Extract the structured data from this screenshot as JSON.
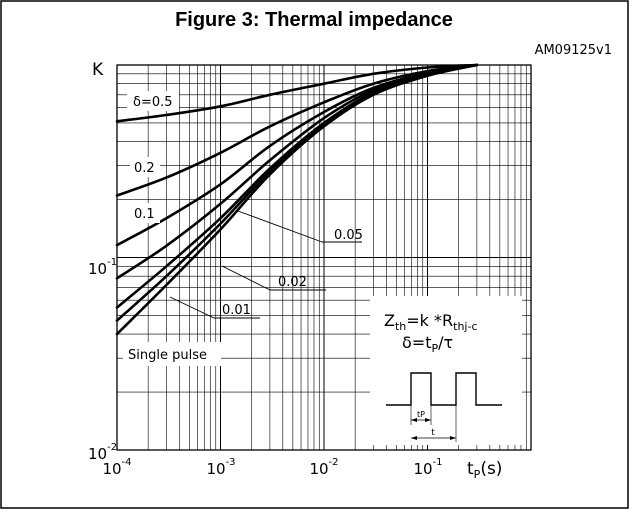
{
  "chart_data": {
    "type": "line",
    "title": "Figure 3: Thermal impedance",
    "figure_code": "AM09125v1",
    "ylabel": "K",
    "xlabel_main": "t",
    "xlabel_sub": "P",
    "xlabel_unit": "(s)",
    "x_scale": "log",
    "y_scale": "log",
    "xlim": [
      0.0001,
      1
    ],
    "ylim": [
      0.01,
      1
    ],
    "grid": true,
    "x_ticks": [
      {
        "base": "10",
        "exp": "-4"
      },
      {
        "base": "10",
        "exp": "-3"
      },
      {
        "base": "10",
        "exp": "-2"
      },
      {
        "base": "10",
        "exp": "-1"
      }
    ],
    "y_ticks": [
      {
        "base": "10",
        "exp": "-1"
      },
      {
        "base": "10",
        "exp": "-2"
      }
    ],
    "series": [
      {
        "name": "δ=0.5",
        "x": [
          0.0001,
          0.0003,
          0.001,
          0.003,
          0.01,
          0.03,
          0.1,
          0.3
        ],
        "y": [
          0.51,
          0.55,
          0.61,
          0.7,
          0.8,
          0.9,
          0.97,
          1.0
        ]
      },
      {
        "name": "0.2",
        "x": [
          0.0001,
          0.0003,
          0.001,
          0.003,
          0.01,
          0.03,
          0.1,
          0.3
        ],
        "y": [
          0.21,
          0.26,
          0.35,
          0.48,
          0.64,
          0.8,
          0.93,
          1.0
        ]
      },
      {
        "name": "0.1",
        "x": [
          0.0001,
          0.0003,
          0.001,
          0.003,
          0.01,
          0.03,
          0.1,
          0.3
        ],
        "y": [
          0.116,
          0.16,
          0.24,
          0.38,
          0.57,
          0.76,
          0.91,
          1.0
        ]
      },
      {
        "name": "0.05",
        "x": [
          0.0001,
          0.0003,
          0.001,
          0.003,
          0.01,
          0.03,
          0.1,
          0.3
        ],
        "y": [
          0.078,
          0.115,
          0.19,
          0.32,
          0.53,
          0.74,
          0.9,
          1.0
        ]
      },
      {
        "name": "0.02",
        "x": [
          0.0001,
          0.0003,
          0.001,
          0.003,
          0.01,
          0.03,
          0.1,
          0.3
        ],
        "y": [
          0.055,
          0.09,
          0.16,
          0.29,
          0.5,
          0.72,
          0.89,
          1.0
        ]
      },
      {
        "name": "0.01",
        "x": [
          0.0001,
          0.0003,
          0.001,
          0.003,
          0.01,
          0.03,
          0.1,
          0.3
        ],
        "y": [
          0.047,
          0.08,
          0.15,
          0.28,
          0.49,
          0.71,
          0.89,
          1.0
        ]
      },
      {
        "name": "Single pulse",
        "x": [
          0.0001,
          0.0003,
          0.001,
          0.003,
          0.01,
          0.03,
          0.1,
          0.3
        ],
        "y": [
          0.04,
          0.072,
          0.14,
          0.27,
          0.48,
          0.7,
          0.88,
          1.0
        ]
      }
    ],
    "curve_labels": {
      "d05": "δ=0.5",
      "d02": "0.2",
      "d01": "0.1",
      "d005": "0.05",
      "d002": "0.02",
      "d001": "0.01",
      "single": "Single pulse"
    },
    "formula": {
      "zth_main": "Z",
      "zth_sub": "th",
      "zth_eq": "=k *R",
      "zth_sub2": "thj-c",
      "delta_eq": "δ=t",
      "delta_sub": "P",
      "delta_tail": "/τ"
    },
    "inset": {
      "tp_label": "tP",
      "t_label": "t"
    }
  }
}
